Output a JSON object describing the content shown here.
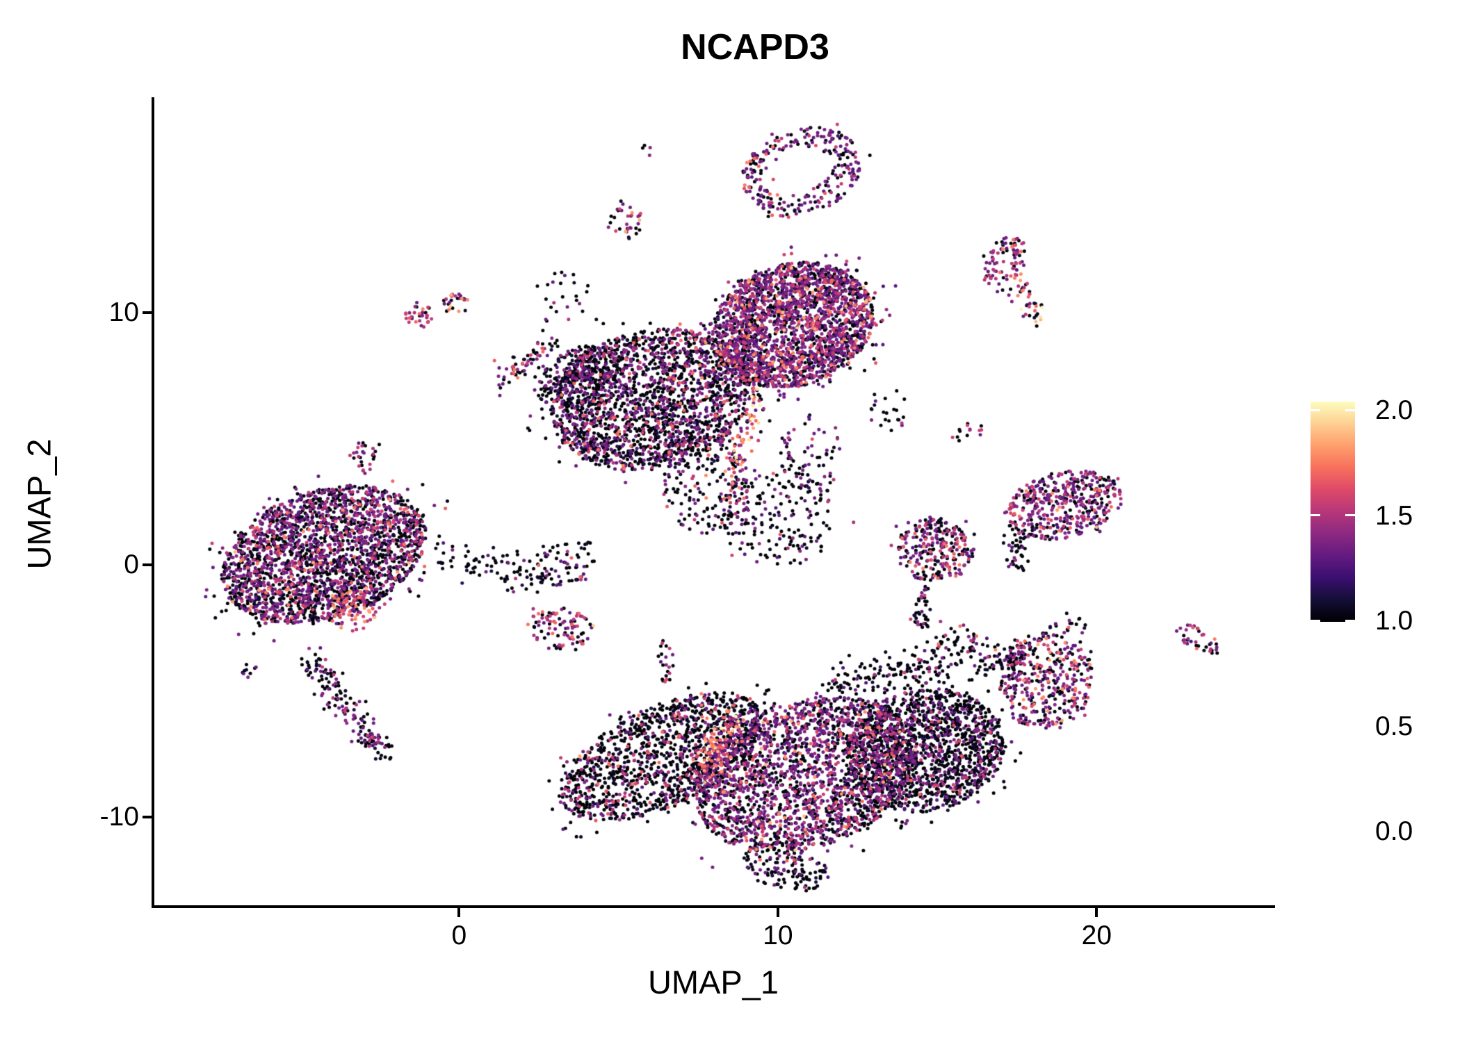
{
  "title": "NCAPD3",
  "chart_data": {
    "type": "scatter",
    "title": "NCAPD3",
    "xlabel": "UMAP_1",
    "ylabel": "UMAP_2",
    "x_range": [
      -9.56,
      25.51
    ],
    "y_range": [
      -13.51,
      18.49
    ],
    "grid": false,
    "x_ticks": {
      "values": [
        0,
        10,
        20
      ],
      "labels": [
        "0",
        "10",
        "20"
      ]
    },
    "y_ticks": {
      "values": [
        -10,
        0,
        10
      ],
      "labels": [
        "-10",
        "0",
        "10"
      ]
    },
    "point_radius_px": 2.5,
    "colorbar": {
      "position": "right",
      "min": 0,
      "max": 2,
      "tick_values": [
        2.0,
        1.5,
        1.0,
        0.5,
        0.0
      ],
      "tick_labels": [
        "2.0",
        "1.5",
        "1.0",
        "0.5",
        "0.0"
      ],
      "colormap": "magma",
      "stops": [
        [
          0.0,
          "#000004"
        ],
        [
          0.1,
          "#140E36"
        ],
        [
          0.2,
          "#3B0F70"
        ],
        [
          0.3,
          "#641A80"
        ],
        [
          0.4,
          "#8C2981"
        ],
        [
          0.5,
          "#B73779"
        ],
        [
          0.6,
          "#DE4968"
        ],
        [
          0.7,
          "#F7705C"
        ],
        [
          0.8,
          "#FE9F6D"
        ],
        [
          0.9,
          "#FECF92"
        ],
        [
          1.0,
          "#FCFDBF"
        ]
      ]
    },
    "expression_levels": {
      "none": 0.02,
      "low": 0.65,
      "mid": 1.0,
      "high": 1.35,
      "very_high": 1.6,
      "max": 1.9
    },
    "clusters": [
      {
        "name": "tiny-pair-top",
        "shape": "disk",
        "cx": 5.89,
        "cy": 16.48,
        "rx": 0.17,
        "ry": 0.33,
        "rot": -30,
        "n": 4,
        "mix": {
          "low": 0.5,
          "none": 0.5
        }
      },
      {
        "name": "top-hook-ring",
        "shape": "ring",
        "hole": 0.44,
        "cx": 10.73,
        "cy": 15.57,
        "rx": 1.92,
        "ry": 1.71,
        "rot": -18,
        "n": 270,
        "mix": {
          "none": 0.44,
          "low": 0.38,
          "mid": 0.14,
          "high": 0.04
        }
      },
      {
        "name": "small-top-center",
        "shape": "disk",
        "cx": 5.17,
        "cy": 13.64,
        "rx": 0.57,
        "ry": 0.74,
        "rot": 0,
        "n": 34,
        "mix": {
          "none": 0.38,
          "low": 0.32,
          "mid": 0.2,
          "very_high": 0.06,
          "high": 0.04
        }
      },
      {
        "name": "pair-left-a",
        "shape": "disk",
        "cx": -1.26,
        "cy": 9.87,
        "rx": 0.44,
        "ry": 0.5,
        "rot": 0,
        "n": 32,
        "mix": {
          "mid": 0.42,
          "low": 0.28,
          "none": 0.2,
          "high": 0.1
        }
      },
      {
        "name": "pair-left-b",
        "shape": "disk",
        "cx": -0.11,
        "cy": 10.36,
        "rx": 0.44,
        "ry": 0.39,
        "rot": 0,
        "n": 26,
        "mix": {
          "none": 0.3,
          "low": 0.27,
          "mid": 0.2,
          "very_high": 0.15,
          "high": 0.08
        }
      },
      {
        "name": "hook-chain",
        "shape": "chain",
        "x1": 3.05,
        "y1": 8.96,
        "x2": 1.2,
        "y2": 7.19,
        "w": 0.33,
        "n": 65,
        "mix": {
          "none": 0.52,
          "low": 0.28,
          "mid": 0.12,
          "high": 0.08
        }
      },
      {
        "name": "scatter-above-hook",
        "shape": "disk",
        "cx": 3.27,
        "cy": 10.56,
        "rx": 0.98,
        "ry": 1.05,
        "rot": 0,
        "n": 24,
        "mix": {
          "none": 0.75,
          "low": 0.17,
          "mid": 0.08
        }
      },
      {
        "name": "main-upper-right-lobe",
        "shape": "disk",
        "cx": 10.47,
        "cy": 9.51,
        "rx": 2.57,
        "ry": 2.43,
        "rot": -15,
        "n": 2300,
        "mix": {
          "none": 0.36,
          "low": 0.45,
          "mid": 0.13,
          "high": 0.05,
          "very_high": 0.01
        }
      },
      {
        "name": "main-upper-left-lobe",
        "shape": "disk",
        "cx": 6.0,
        "cy": 6.56,
        "rx": 3.16,
        "ry": 2.76,
        "rot": -12,
        "n": 2000,
        "mix": {
          "none": 0.64,
          "low": 0.27,
          "mid": 0.06,
          "high": 0.03
        }
      },
      {
        "name": "main-left-arm",
        "shape": "disk",
        "cx": 3.71,
        "cy": 7.39,
        "rx": 1.35,
        "ry": 1.16,
        "rot": -30,
        "n": 240,
        "mix": {
          "none": 0.68,
          "low": 0.26,
          "mid": 0.06
        }
      },
      {
        "name": "bright-streak",
        "shape": "chain",
        "x1": 9.42,
        "y1": 7.3,
        "x2": 8.46,
        "y2": 2.78,
        "w": 0.28,
        "n": 62,
        "mix": {
          "high": 0.3,
          "very_high": 0.22,
          "max": 0.12,
          "mid": 0.2,
          "low": 0.16
        }
      },
      {
        "name": "bright-streak-halo",
        "shape": "chain",
        "x1": 9.42,
        "y1": 7.3,
        "x2": 8.46,
        "y2": 2.78,
        "w": 0.65,
        "n": 48,
        "mix": {
          "none": 0.45,
          "low": 0.4,
          "mid": 0.15
        }
      },
      {
        "name": "center-bridge-a",
        "shape": "disk",
        "cx": 7.74,
        "cy": 3.25,
        "rx": 1.35,
        "ry": 2.07,
        "rot": 0,
        "n": 170,
        "mix": {
          "none": 0.62,
          "low": 0.27,
          "mid": 0.08,
          "high": 0.03
        }
      },
      {
        "name": "center-bridge-b",
        "shape": "disk",
        "cx": 10.03,
        "cy": 1.87,
        "rx": 1.79,
        "ry": 2.07,
        "rot": 0,
        "n": 180,
        "mix": {
          "none": 0.68,
          "low": 0.25,
          "mid": 0.05,
          "high": 0.02
        }
      },
      {
        "name": "center-strand",
        "shape": "disk",
        "cx": 11.01,
        "cy": 4.36,
        "rx": 0.98,
        "ry": 1.52,
        "rot": 0,
        "n": 70,
        "mix": {
          "none": 0.55,
          "low": 0.35,
          "mid": 0.1
        }
      },
      {
        "name": "scatter-right-of-main",
        "shape": "disk",
        "cx": 13.3,
        "cy": 6.15,
        "rx": 0.83,
        "ry": 0.91,
        "rot": 0,
        "n": 22,
        "mix": {
          "none": 0.8,
          "low": 0.15,
          "mid": 0.05
        }
      },
      {
        "name": "left-arm-scatter",
        "shape": "disk",
        "cx": 3.38,
        "cy": 0.03,
        "rx": 1.13,
        "ry": 0.83,
        "rot": -20,
        "n": 70,
        "mix": {
          "none": 0.78,
          "low": 0.14,
          "mid": 0.05,
          "high": 0.03
        }
      },
      {
        "name": "magenta-small-cluster",
        "shape": "disk",
        "cx": 3.18,
        "cy": -2.56,
        "rx": 1.05,
        "ry": 0.85,
        "rot": 8,
        "n": 95,
        "mix": {
          "none": 0.28,
          "low": 0.27,
          "mid": 0.3,
          "high": 0.12,
          "very_high": 0.03
        }
      },
      {
        "name": "tiny-vertical-blob",
        "shape": "disk",
        "cx": 6.48,
        "cy": -3.83,
        "rx": 0.24,
        "ry": 0.88,
        "rot": 0,
        "n": 22,
        "mix": {
          "none": 0.45,
          "low": 0.3,
          "mid": 0.25
        }
      },
      {
        "name": "bottom-left-wing",
        "shape": "disk",
        "cx": 6.32,
        "cy": -7.64,
        "rx": 3.45,
        "ry": 1.98,
        "rot": -25,
        "n": 1250,
        "mix": {
          "none": 0.78,
          "low": 0.12,
          "mid": 0.07,
          "high": 0.03
        }
      },
      {
        "name": "bottom-bright-wedge",
        "shape": "chain",
        "x1": 8.72,
        "y1": -5.76,
        "x2": 7.41,
        "y2": -8.46,
        "w": 0.38,
        "n": 95,
        "mix": {
          "high": 0.3,
          "very_high": 0.18,
          "mid": 0.27,
          "max": 0.05,
          "low": 0.2
        }
      },
      {
        "name": "bottom-central-body",
        "shape": "disk",
        "cx": 10.9,
        "cy": -8.32,
        "rx": 3.6,
        "ry": 2.89,
        "rot": -18,
        "n": 2200,
        "mix": {
          "none": 0.44,
          "low": 0.38,
          "mid": 0.13,
          "high": 0.04,
          "very_high": 0.01
        }
      },
      {
        "name": "bottom-right-mass",
        "shape": "disk",
        "cx": 14.61,
        "cy": -7.36,
        "rx": 2.51,
        "ry": 2.43,
        "rot": -10,
        "n": 1450,
        "mix": {
          "none": 0.75,
          "low": 0.19,
          "mid": 0.05,
          "high": 0.01
        }
      },
      {
        "name": "bottom-top-arm",
        "shape": "chain",
        "x1": 11.56,
        "y1": -4.88,
        "x2": 16.14,
        "y2": -3.5,
        "w": 0.65,
        "n": 170,
        "mix": {
          "none": 0.84,
          "low": 0.11,
          "mid": 0.05
        }
      },
      {
        "name": "bottom-tip",
        "shape": "disk",
        "cx": 10.25,
        "cy": -11.91,
        "rx": 1.35,
        "ry": 0.99,
        "rot": 15,
        "n": 140,
        "mix": {
          "none": 0.78,
          "low": 0.17,
          "mid": 0.05
        }
      },
      {
        "name": "upper-right-head",
        "shape": "disk",
        "cx": 17.07,
        "cy": 12.07,
        "rx": 0.65,
        "ry": 1.1,
        "rot": 35,
        "n": 85,
        "mix": {
          "low": 0.38,
          "mid": 0.27,
          "none": 0.25,
          "high": 0.07,
          "very_high": 0.03
        }
      },
      {
        "name": "upper-right-tail",
        "shape": "chain",
        "x1": 17.49,
        "y1": 11.16,
        "x2": 18.23,
        "y2": 9.68,
        "w": 0.3,
        "n": 40,
        "mix": {
          "none": 0.45,
          "low": 0.2,
          "mid": 0.12,
          "high": 0.08,
          "very_high": 0.1,
          "max": 0.05
        }
      },
      {
        "name": "tiny-mid-right",
        "shape": "disk",
        "cx": 15.92,
        "cy": 5.27,
        "rx": 0.65,
        "ry": 0.36,
        "rot": -8,
        "n": 14,
        "mix": {
          "none": 0.55,
          "mid": 0.25,
          "low": 0.2
        }
      },
      {
        "name": "right-oval-cluster",
        "shape": "disk",
        "cx": 18.97,
        "cy": 2.37,
        "rx": 1.88,
        "ry": 1.32,
        "rot": -12,
        "n": 430,
        "mix": {
          "none": 0.32,
          "low": 0.45,
          "mid": 0.16,
          "high": 0.05,
          "very_high": 0.02
        }
      },
      {
        "name": "right-oval-tail",
        "shape": "chain",
        "x1": 17.62,
        "y1": 1.41,
        "x2": 17.27,
        "y2": 0.03,
        "w": 0.35,
        "n": 45,
        "mix": {
          "none": 0.88,
          "low": 0.12
        }
      },
      {
        "name": "right-round-cluster",
        "shape": "disk",
        "cx": 14.94,
        "cy": 0.58,
        "rx": 1.22,
        "ry": 1.27,
        "rot": 0,
        "n": 270,
        "mix": {
          "none": 0.4,
          "low": 0.33,
          "mid": 0.18,
          "high": 0.09
        }
      },
      {
        "name": "right-round-tail",
        "shape": "chain",
        "x1": 14.61,
        "y1": -0.74,
        "x2": 14.44,
        "y2": -2.45,
        "w": 0.3,
        "n": 42,
        "mix": {
          "none": 0.84,
          "low": 0.11,
          "mid": 0.05
        }
      },
      {
        "name": "trail-to-chevron",
        "shape": "chain",
        "x1": 15.09,
        "y1": -2.54,
        "x2": 17.49,
        "y2": -4.0,
        "w": 0.38,
        "n": 45,
        "mix": {
          "none": 0.8,
          "low": 0.1,
          "mid": 0.07,
          "high": 0.03
        }
      },
      {
        "name": "chevron-arm",
        "shape": "chain",
        "x1": 16.31,
        "y1": -4.19,
        "x2": 19.45,
        "y2": -2.12,
        "w": 0.3,
        "n": 78,
        "mix": {
          "none": 0.88,
          "low": 0.12
        }
      },
      {
        "name": "chevron-body",
        "shape": "disk",
        "cx": 18.42,
        "cy": -4.6,
        "rx": 1.48,
        "ry": 1.93,
        "rot": 20,
        "n": 380,
        "mix": {
          "none": 0.4,
          "low": 0.36,
          "mid": 0.14,
          "high": 0.06,
          "very_high": 0.04
        }
      },
      {
        "name": "far-right-tiny",
        "shape": "disk",
        "cx": 23.18,
        "cy": -2.95,
        "rx": 0.74,
        "ry": 0.44,
        "rot": 28,
        "n": 38,
        "mix": {
          "low": 0.33,
          "mid": 0.3,
          "none": 0.25,
          "high": 0.12
        }
      },
      {
        "name": "left-main-cluster",
        "shape": "disk",
        "cx": -4.25,
        "cy": 0.41,
        "rx": 3.31,
        "ry": 2.54,
        "rot": -18,
        "n": 2400,
        "mix": {
          "none": 0.52,
          "low": 0.34,
          "mid": 0.1,
          "high": 0.035,
          "very_high": 0.005
        }
      },
      {
        "name": "left-bright-patch",
        "shape": "disk",
        "cx": -3.38,
        "cy": -1.79,
        "rx": 0.83,
        "ry": 0.91,
        "rot": 0,
        "n": 72,
        "mix": {
          "high": 0.3,
          "mid": 0.3,
          "very_high": 0.1,
          "low": 0.2,
          "none": 0.1
        }
      },
      {
        "name": "left-top-blob",
        "shape": "disk",
        "cx": -2.99,
        "cy": 4.36,
        "rx": 0.44,
        "ry": 0.66,
        "rot": 0,
        "n": 28,
        "mix": {
          "low": 0.4,
          "mid": 0.3,
          "none": 0.3
        }
      },
      {
        "name": "left-tail",
        "shape": "chain",
        "x1": -4.8,
        "y1": -3.64,
        "x2": -2.29,
        "y2": -7.58,
        "w": 0.4,
        "n": 145,
        "mix": {
          "none": 0.6,
          "low": 0.3,
          "mid": 0.1
        }
      },
      {
        "name": "left-tail-end",
        "shape": "disk",
        "cx": -2.73,
        "cy": -7.03,
        "rx": 0.35,
        "ry": 0.36,
        "rot": 0,
        "n": 20,
        "mix": {
          "mid": 0.4,
          "low": 0.2,
          "none": 0.4
        }
      },
      {
        "name": "left-tiny-side",
        "shape": "disk",
        "cx": -6.65,
        "cy": -4.19,
        "rx": 0.33,
        "ry": 0.28,
        "rot": 0,
        "n": 9,
        "mix": {
          "none": 0.6,
          "low": 0.4
        }
      },
      {
        "name": "left-bridge",
        "shape": "chain",
        "x1": -0.76,
        "y1": 0.36,
        "x2": 2.83,
        "y2": -0.33,
        "w": 0.55,
        "n": 85,
        "mix": {
          "none": 0.85,
          "low": 0.1,
          "mid": 0.05
        }
      }
    ]
  }
}
